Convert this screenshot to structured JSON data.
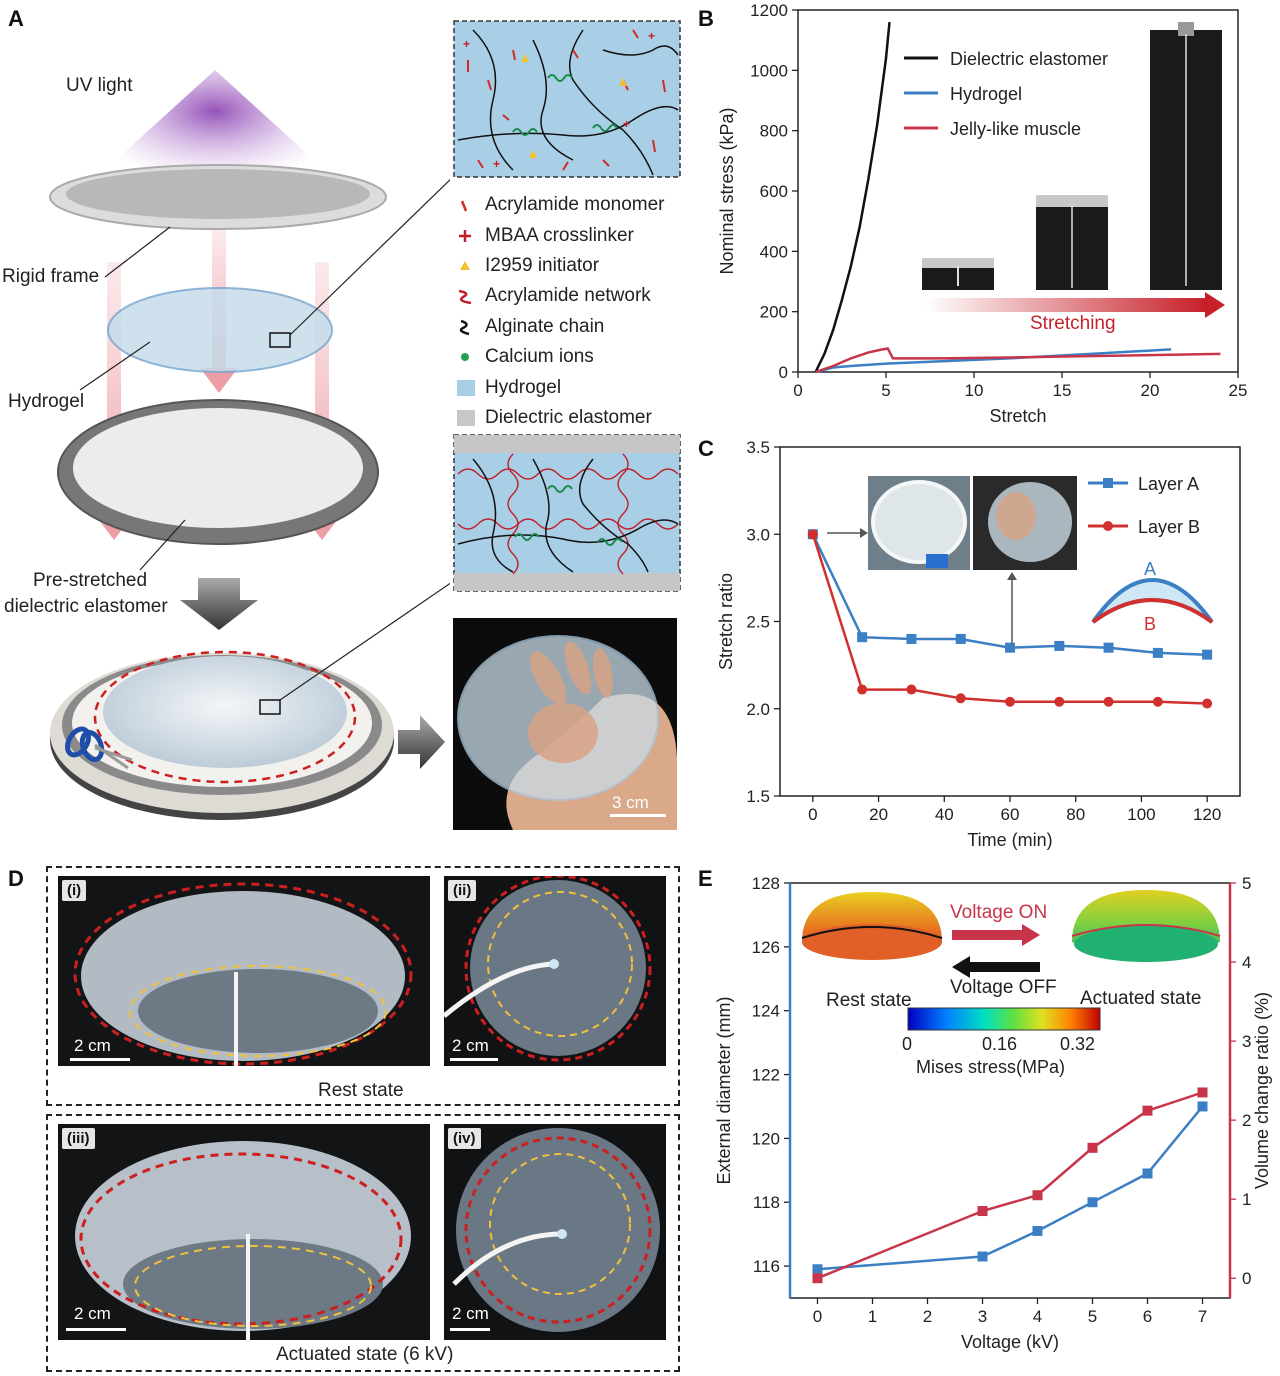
{
  "panel_labels": {
    "a": "A",
    "b": "B",
    "c": "C",
    "d": "D",
    "e": "E"
  },
  "panel_a": {
    "uv_light": "UV light",
    "rigid_frame": "Rigid frame",
    "hydrogel": "Hydrogel",
    "pre_stretched_1": "Pre-stretched",
    "pre_stretched_2": "dielectric elastomer",
    "legend": [
      {
        "label": "Acrylamide monomer",
        "marker": "dash",
        "color": "#d02a2a"
      },
      {
        "label": "MBAA crosslinker",
        "marker": "plus",
        "color": "#c0202a"
      },
      {
        "label": "I2959 initiator",
        "marker": "triangle",
        "color": "#f0c030"
      },
      {
        "label": "Acrylamide network",
        "marker": "wave",
        "color": "#c0202a"
      },
      {
        "label": "Alginate chain",
        "marker": "chain",
        "color": "#111111"
      },
      {
        "label": "Calcium ions",
        "marker": "dot",
        "color": "#22a050"
      },
      {
        "label": "Hydrogel",
        "marker": "box",
        "color": "#a9cfe6"
      },
      {
        "label": "Dielectric elastomer",
        "marker": "box",
        "color": "#c8c8c8"
      }
    ],
    "scale_bar": "3 cm"
  },
  "panel_d": {
    "labels": [
      "(i)",
      "(ii)",
      "(iii)",
      "(iv)"
    ],
    "scale_bar": "2 cm",
    "rest_state": "Rest state",
    "actuated_state": "Actuated state (6 kV)"
  },
  "panel_e_inset": {
    "voltage_on": "Voltage ON",
    "voltage_off": "Voltage OFF",
    "rest_state": "Rest state",
    "actuated_state": "Actuated state",
    "colorbar_ticks": [
      "0",
      "0.16",
      "0.32"
    ],
    "colorbar_label": "Mises stress(MPa)"
  },
  "chart_data": [
    {
      "id": "B",
      "type": "line",
      "xlabel": "Stretch",
      "ylabel": "Nominal stress (kPa)",
      "xlim": [
        0,
        25
      ],
      "ylim": [
        0,
        1200
      ],
      "xticks": [
        0,
        5,
        10,
        15,
        20,
        25
      ],
      "yticks": [
        0,
        200,
        400,
        600,
        800,
        1000,
        1200
      ],
      "legend_position": "top-left",
      "inset_arrow_label": "Stretching",
      "series": [
        {
          "name": "Dielectric elastomer",
          "color": "#111111",
          "x": [
            1,
            1.5,
            2,
            2.5,
            3,
            3.5,
            4,
            4.5,
            5,
            5.2
          ],
          "y": [
            0,
            60,
            140,
            240,
            350,
            480,
            640,
            820,
            1040,
            1160
          ]
        },
        {
          "name": "Hydrogel",
          "color": "#3b7fc4",
          "x": [
            1,
            2,
            3,
            5,
            8,
            12,
            16,
            21.2
          ],
          "y": [
            0,
            15,
            20,
            28,
            35,
            45,
            58,
            75
          ]
        },
        {
          "name": "Jelly-like muscle",
          "color": "#c8344a",
          "x": [
            1,
            2,
            3,
            4,
            4.8,
            5.1,
            5.4,
            8,
            12,
            16,
            20,
            24
          ],
          "y": [
            0,
            20,
            45,
            65,
            75,
            78,
            45,
            45,
            48,
            52,
            56,
            60
          ]
        }
      ]
    },
    {
      "id": "C",
      "type": "line",
      "xlabel": "Time (min)",
      "ylabel": "Stretch ratio",
      "xlim": [
        -10,
        130
      ],
      "ylim": [
        1.5,
        3.5
      ],
      "xticks": [
        0,
        20,
        40,
        60,
        80,
        100,
        120
      ],
      "yticks": [
        1.5,
        2.0,
        2.5,
        3.0,
        3.5
      ],
      "legend_position": "top-right",
      "inset_labels": {
        "a": "A",
        "b": "B"
      },
      "series": [
        {
          "name": "Layer A",
          "color": "#3b7fc4",
          "marker": "square",
          "x": [
            0,
            15,
            30,
            45,
            60,
            75,
            90,
            105,
            120
          ],
          "y": [
            3.0,
            2.41,
            2.4,
            2.4,
            2.35,
            2.36,
            2.35,
            2.32,
            2.31
          ]
        },
        {
          "name": "Layer B",
          "color": "#d0302e",
          "marker": "circle",
          "x": [
            0,
            15,
            30,
            45,
            60,
            75,
            90,
            105,
            120
          ],
          "y": [
            3.0,
            2.11,
            2.11,
            2.06,
            2.04,
            2.04,
            2.04,
            2.04,
            2.03
          ]
        }
      ]
    },
    {
      "id": "E",
      "type": "line",
      "xlabel": "Voltage (kV)",
      "ylabel": "External diameter (mm)",
      "y2label": "Volume change ratio (%)",
      "xlim": [
        -0.5,
        7.5
      ],
      "ylim": [
        115,
        128
      ],
      "y2lim": [
        -0.25,
        5
      ],
      "xticks": [
        0,
        1,
        2,
        3,
        4,
        5,
        6,
        7
      ],
      "yticks": [
        116,
        118,
        120,
        122,
        124,
        126,
        128
      ],
      "y2ticks": [
        0,
        1,
        2,
        3,
        4,
        5
      ],
      "series": [
        {
          "name": "",
          "axis": "left",
          "color": "#3b7fc4",
          "marker": "square",
          "x": [
            0,
            3,
            4,
            5,
            6,
            7
          ],
          "y": [
            115.9,
            116.3,
            117.1,
            118.0,
            118.9,
            121.0
          ]
        },
        {
          "name": "",
          "axis": "right",
          "color": "#c8344a",
          "marker": "square",
          "x": [
            0,
            3,
            4,
            5,
            6,
            7
          ],
          "y": [
            0.0,
            0.85,
            1.05,
            1.65,
            2.12,
            2.35
          ]
        }
      ]
    }
  ]
}
